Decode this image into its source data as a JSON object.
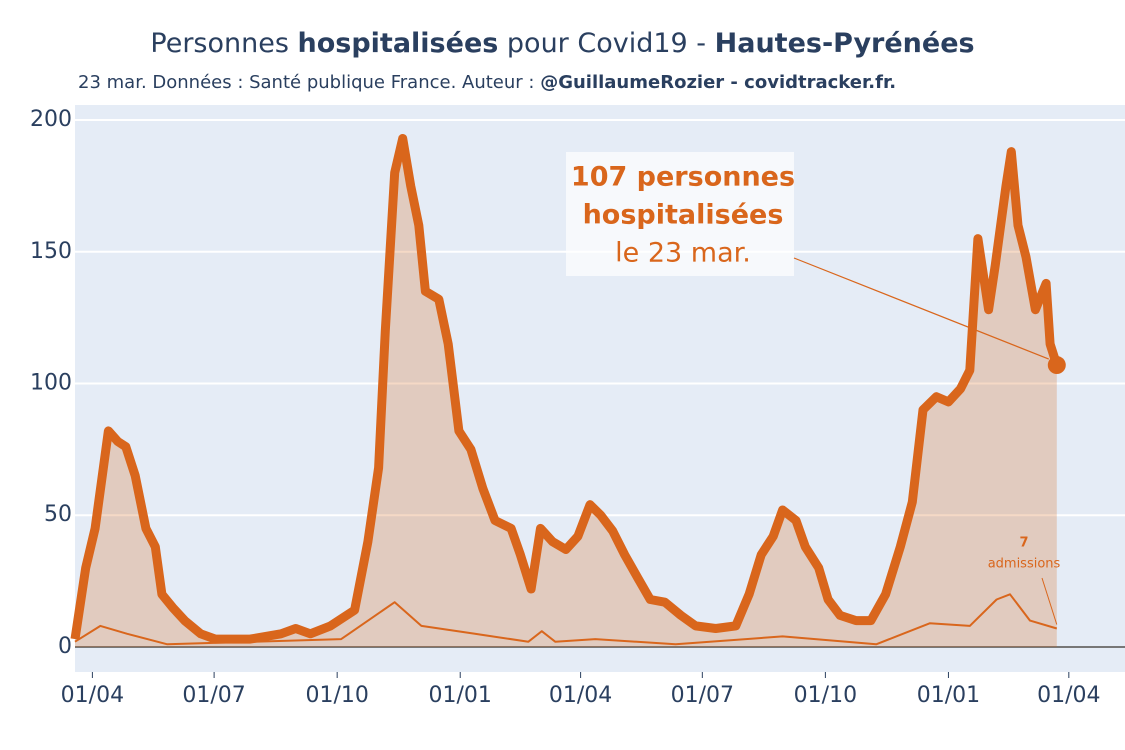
{
  "chart_data": {
    "type": "line",
    "title": [
      {
        "text": "Personnes ",
        "bold": false
      },
      {
        "text": "hospitalisées",
        "bold": true
      },
      {
        "text": " pour Covid19 - ",
        "bold": false
      },
      {
        "text": "Hautes-Pyrénées",
        "bold": true
      }
    ],
    "subtitle": [
      {
        "text": "23 mar. Données : Santé publique France. Auteur : ",
        "bold": false
      },
      {
        "text": "@GuillaumeRozier - covidtracker.fr.",
        "bold": true
      }
    ],
    "series": [
      {
        "color": "#d9661c",
        "width": 9,
        "fill": true,
        "x": [
          1,
          9,
          16,
          26,
          33,
          39,
          46,
          54,
          61,
          66,
          74,
          83,
          95,
          106,
          132,
          155,
          166,
          177,
          192,
          210,
          220,
          228,
          233,
          240,
          246,
          252,
          258,
          263,
          273,
          280,
          288,
          297,
          306,
          315,
          327,
          334,
          342,
          349,
          358,
          368,
          377,
          386,
          394,
          403,
          412,
          422,
          431,
          442,
          454,
          465,
          480,
          495,
          505,
          514,
          523,
          530,
          540,
          547,
          557,
          564,
          573,
          585,
          596,
          607,
          618,
          627,
          635,
          645,
          654,
          663,
          670,
          676,
          684,
          689,
          697,
          701,
          706,
          712,
          719,
          727,
          730,
          735
        ],
        "values": [
          3,
          30,
          45,
          82,
          78,
          76,
          65,
          45,
          38,
          20,
          15,
          10,
          5,
          3,
          3,
          5,
          7,
          5,
          8,
          14,
          40,
          68,
          120,
          180,
          193,
          175,
          160,
          135,
          132,
          115,
          82,
          75,
          60,
          48,
          45,
          35,
          22,
          45,
          40,
          37,
          42,
          54,
          50,
          44,
          35,
          26,
          18,
          17,
          12,
          8,
          7,
          8,
          20,
          35,
          42,
          52,
          48,
          38,
          30,
          18,
          12,
          10,
          10,
          20,
          38,
          55,
          90,
          95,
          93,
          98,
          105,
          155,
          128,
          145,
          175,
          188,
          160,
          148,
          128,
          138,
          115,
          107
        ]
      },
      {
        "color": "#d9661c",
        "width": 2,
        "fill": false,
        "x": [
          1,
          20,
          40,
          70,
          200,
          240,
          260,
          300,
          340,
          350,
          360,
          390,
          450,
          530,
          600,
          640,
          670,
          690,
          700,
          715,
          735
        ],
        "values": [
          2,
          8,
          5,
          1,
          3,
          17,
          8,
          5,
          2,
          6,
          2,
          3,
          1,
          4,
          1,
          9,
          8,
          18,
          20,
          10,
          7
        ]
      }
    ],
    "annotations": [
      {
        "lines": [
          {
            "text": "107 personnes",
            "bold": true
          },
          {
            "text": "hospitalisées",
            "bold": true
          },
          {
            "text": "le 23 mar.",
            "bold": false
          }
        ]
      },
      {
        "lines": [
          {
            "text": "7",
            "bold": true
          },
          {
            "text": "admissions",
            "bold": false
          }
        ]
      }
    ],
    "xlim": [
      1,
      786
    ],
    "xticks": [
      {
        "value": 14,
        "label": "01/04"
      },
      {
        "value": 105,
        "label": "01/07"
      },
      {
        "value": 197,
        "label": "01/10"
      },
      {
        "value": 289,
        "label": "01/01"
      },
      {
        "value": 379,
        "label": "01/04"
      },
      {
        "value": 470,
        "label": "01/07"
      },
      {
        "value": 562,
        "label": "01/10"
      },
      {
        "value": 654,
        "label": "01/01"
      },
      {
        "value": 744,
        "label": "01/04"
      }
    ],
    "ylim": [
      -9.5,
      205.7
    ],
    "yticks": [
      0,
      50,
      100,
      150,
      200
    ],
    "grid": true
  }
}
